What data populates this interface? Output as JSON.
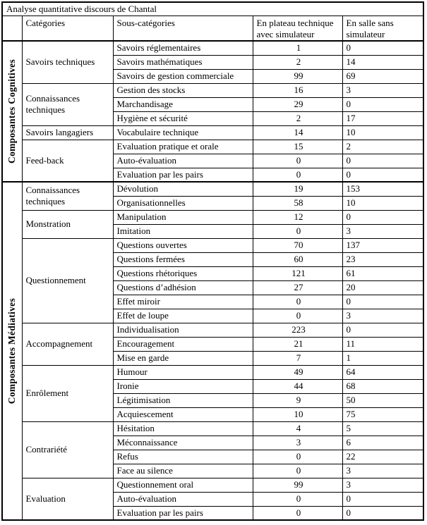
{
  "title": "Analyse quantitative discours de Chantal",
  "columns": {
    "corner": "",
    "category": "Catégories",
    "subcategory": "Sous-catégories",
    "plateau": "En plateau technique avec simulateur",
    "salle": "En salle sans simulateur"
  },
  "groups": [
    {
      "label": "Composantes Cognitives",
      "categories": [
        {
          "label": "Savoirs techniques",
          "rows": [
            [
              "Savoirs réglementaires",
              "1",
              "0"
            ],
            [
              "Savoirs mathématiques",
              "2",
              "14"
            ],
            [
              "Savoirs de gestion commerciale",
              "99",
              "69"
            ]
          ]
        },
        {
          "label": "Connaissances techniques",
          "rows": [
            [
              "Gestion des stocks",
              "16",
              "3"
            ],
            [
              "Marchandisage",
              "29",
              "0"
            ],
            [
              "Hygiène et sécurité",
              "2",
              "17"
            ]
          ]
        },
        {
          "label": "Savoirs langagiers",
          "rows": [
            [
              "Vocabulaire technique",
              "14",
              "10"
            ]
          ]
        },
        {
          "label": "Feed-back",
          "rows": [
            [
              "Evaluation pratique et orale",
              "15",
              "2"
            ],
            [
              "Auto-évaluation",
              "0",
              "0"
            ],
            [
              "Evaluation par les pairs",
              "0",
              "0"
            ]
          ]
        }
      ]
    },
    {
      "label": "Composantes Médiatives",
      "categories": [
        {
          "label": "Connaissances techniques",
          "rows": [
            [
              "Dévolution",
              "19",
              "153"
            ],
            [
              "Organisationnelles",
              "58",
              "10"
            ]
          ]
        },
        {
          "label": "Monstration",
          "rows": [
            [
              "Manipulation",
              "12",
              "0"
            ],
            [
              "Imitation",
              "0",
              "3"
            ]
          ]
        },
        {
          "label": "Questionnement",
          "rows": [
            [
              "Questions ouvertes",
              "70",
              "137"
            ],
            [
              "Questions fermées",
              "60",
              "23"
            ],
            [
              "Questions rhétoriques",
              "121",
              "61"
            ],
            [
              "Questions d’adhésion",
              "27",
              "20"
            ],
            [
              "Effet miroir",
              "0",
              "0"
            ],
            [
              "Effet de loupe",
              "0",
              "3"
            ]
          ]
        },
        {
          "label": "Accompagnement",
          "rows": [
            [
              "Individualisation",
              "223",
              "0"
            ],
            [
              "Encouragement",
              "21",
              "11"
            ],
            [
              "Mise en garde",
              "7",
              "1"
            ]
          ]
        },
        {
          "label": "Enrôlement",
          "rows": [
            [
              "Humour",
              "49",
              "64"
            ],
            [
              "Ironie",
              "44",
              "68"
            ],
            [
              "Légitimisation",
              "9",
              "50"
            ],
            [
              "Acquiescement",
              "10",
              "75"
            ]
          ]
        },
        {
          "label": "Contrariété",
          "rows": [
            [
              "Hésitation",
              "4",
              "5"
            ],
            [
              "Méconnaissance",
              "3",
              "6"
            ],
            [
              "Refus",
              "0",
              "22"
            ],
            [
              "Face au silence",
              "0",
              "3"
            ]
          ]
        },
        {
          "label": "Evaluation",
          "rows": [
            [
              "Questionnement oral",
              "99",
              "3"
            ],
            [
              "Auto-évaluation",
              "0",
              "0"
            ],
            [
              "Evaluation par les pairs",
              "0",
              "0"
            ]
          ]
        }
      ]
    }
  ]
}
